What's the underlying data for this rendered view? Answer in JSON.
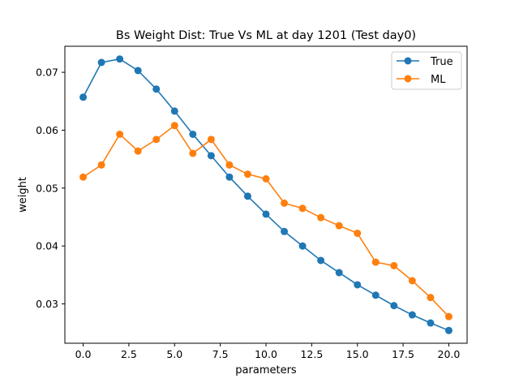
{
  "colors": {
    "true_series": "#1f77b4",
    "ml_series": "#ff7f0e",
    "axes": "#000000",
    "background": "#ffffff"
  },
  "chart_data": {
    "type": "line",
    "title": "Bs Weight Dist: True Vs ML at day 1201 (Test day0)",
    "xlabel": "parameters",
    "ylabel": "weight",
    "xlim": [
      -1.0,
      21.0
    ],
    "ylim": [
      0.0232,
      0.0745
    ],
    "xticks": [
      0.0,
      2.5,
      5.0,
      7.5,
      10.0,
      12.5,
      15.0,
      17.5,
      20.0
    ],
    "xtick_labels": [
      "0.0",
      "2.5",
      "5.0",
      "7.5",
      "10.0",
      "12.5",
      "15.0",
      "17.5",
      "20.0"
    ],
    "yticks": [
      0.03,
      0.04,
      0.05,
      0.06,
      0.07
    ],
    "ytick_labels": [
      "0.03",
      "0.04",
      "0.05",
      "0.06",
      "0.07"
    ],
    "grid": false,
    "legend_position": "top-right",
    "x": [
      0,
      1,
      2,
      3,
      4,
      5,
      6,
      7,
      8,
      9,
      10,
      11,
      12,
      13,
      14,
      15,
      16,
      17,
      18,
      19,
      20
    ],
    "series": [
      {
        "name": "True",
        "color": "#1f77b4",
        "marker": "circle",
        "values": [
          0.0657,
          0.0717,
          0.0723,
          0.0703,
          0.0671,
          0.0633,
          0.0593,
          0.0556,
          0.0519,
          0.0486,
          0.0455,
          0.0425,
          0.04,
          0.0375,
          0.0354,
          0.0333,
          0.0315,
          0.0297,
          0.0281,
          0.0267,
          0.0254
        ]
      },
      {
        "name": "ML",
        "color": "#ff7f0e",
        "marker": "circle",
        "values": [
          0.0519,
          0.054,
          0.0593,
          0.0564,
          0.0584,
          0.0608,
          0.056,
          0.0584,
          0.054,
          0.0524,
          0.0516,
          0.0474,
          0.0465,
          0.0449,
          0.0435,
          0.0422,
          0.0372,
          0.0366,
          0.034,
          0.0311,
          0.0278
        ]
      }
    ]
  }
}
